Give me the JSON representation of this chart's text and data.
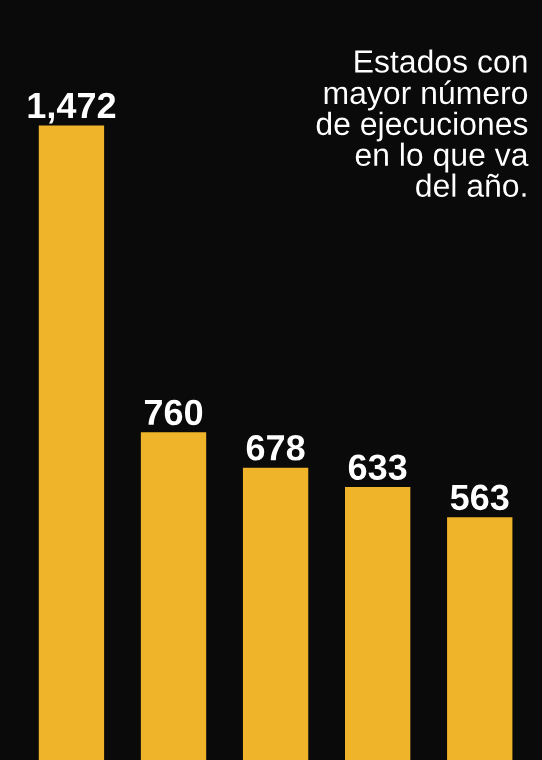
{
  "chart_data": {
    "type": "bar",
    "title": "Estados con\nmayor número\nde ejecuciones\nen lo que va\ndel año.",
    "categories": [
      null,
      null,
      null,
      null,
      null
    ],
    "values": [
      1472,
      760,
      678,
      633,
      563
    ],
    "value_labels": [
      "1,472",
      "760",
      "678",
      "633",
      "563"
    ],
    "color": "#f0b42a"
  }
}
